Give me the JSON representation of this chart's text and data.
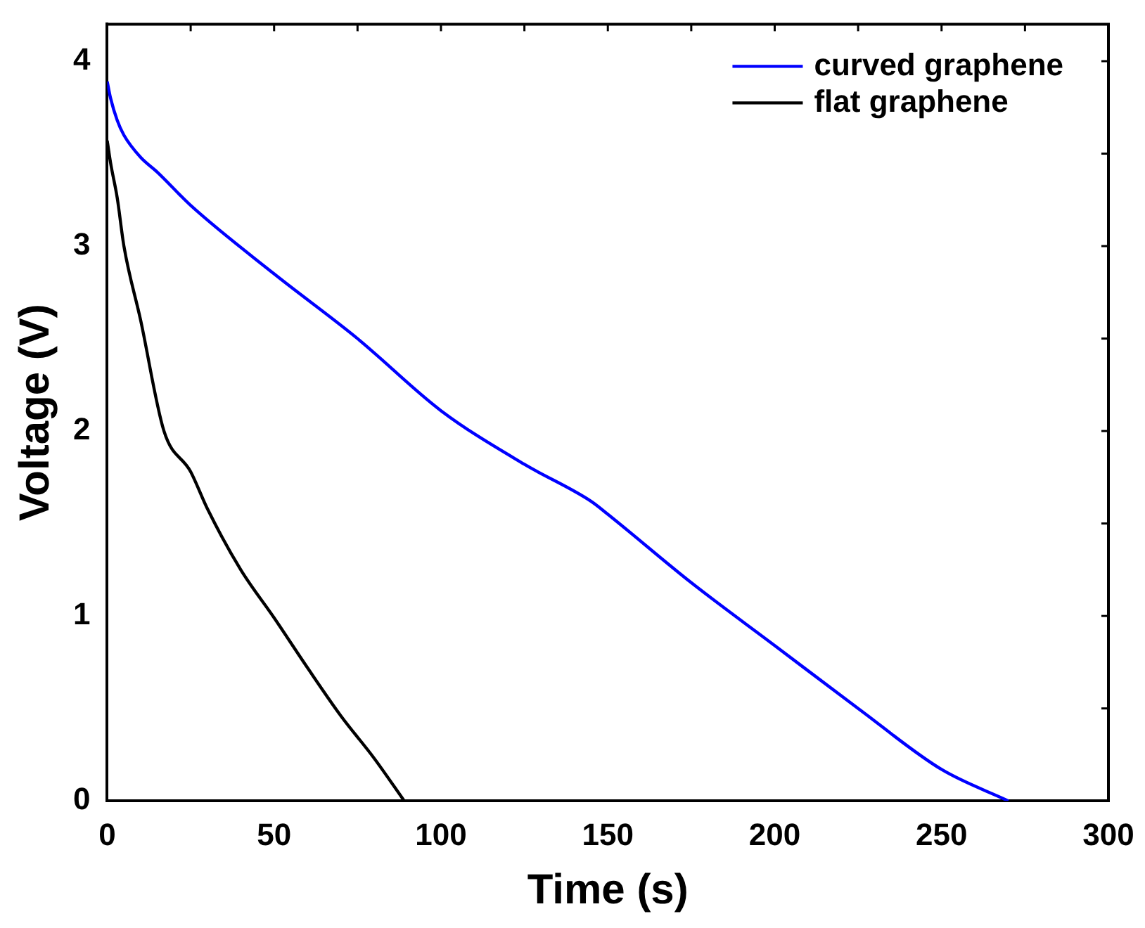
{
  "chart_data": {
    "type": "line",
    "xlabel": "Time (s)",
    "ylabel": "Voltage (V)",
    "xlim": [
      0,
      300
    ],
    "xticks": [
      0,
      {
        "value": 25,
        "label": null
      },
      50,
      {
        "value": 75,
        "label": null
      },
      100,
      {
        "value": 125,
        "label": null
      },
      150,
      {
        "value": 175,
        "label": null
      },
      200,
      {
        "value": 225,
        "label": null
      },
      250,
      {
        "value": 275,
        "label": null
      },
      300
    ],
    "ylim": [
      0,
      4.2
    ],
    "yticks": [
      0,
      {
        "value": 0.5,
        "label": null
      },
      1,
      {
        "value": 1.5,
        "label": null
      },
      2,
      {
        "value": 2.5,
        "label": null
      },
      3,
      {
        "value": 3.5,
        "label": null
      },
      4
    ],
    "grid": false,
    "legend": "top right",
    "marker": "none",
    "line_style": "solid",
    "series": [
      {
        "name": "curved graphene",
        "color": "#0000ff",
        "x": [
          0,
          1,
          3,
          5,
          10,
          15,
          25,
          50,
          75,
          100,
          125,
          145,
          150,
          175,
          200,
          225,
          250,
          270
        ],
        "values": [
          3.89,
          3.8,
          3.68,
          3.6,
          3.48,
          3.4,
          3.22,
          2.85,
          2.5,
          2.11,
          1.82,
          1.62,
          1.55,
          1.18,
          0.84,
          0.5,
          0.17,
          0
        ]
      },
      {
        "name": "flat graphene",
        "color": "#000000",
        "x": [
          0,
          1,
          3,
          5,
          10,
          17,
          25,
          30,
          40,
          50,
          60,
          70,
          80,
          89
        ],
        "values": [
          3.57,
          3.45,
          3.26,
          3.0,
          2.6,
          2.0,
          1.78,
          1.58,
          1.25,
          0.99,
          0.72,
          0.46,
          0.23,
          0
        ]
      }
    ]
  }
}
